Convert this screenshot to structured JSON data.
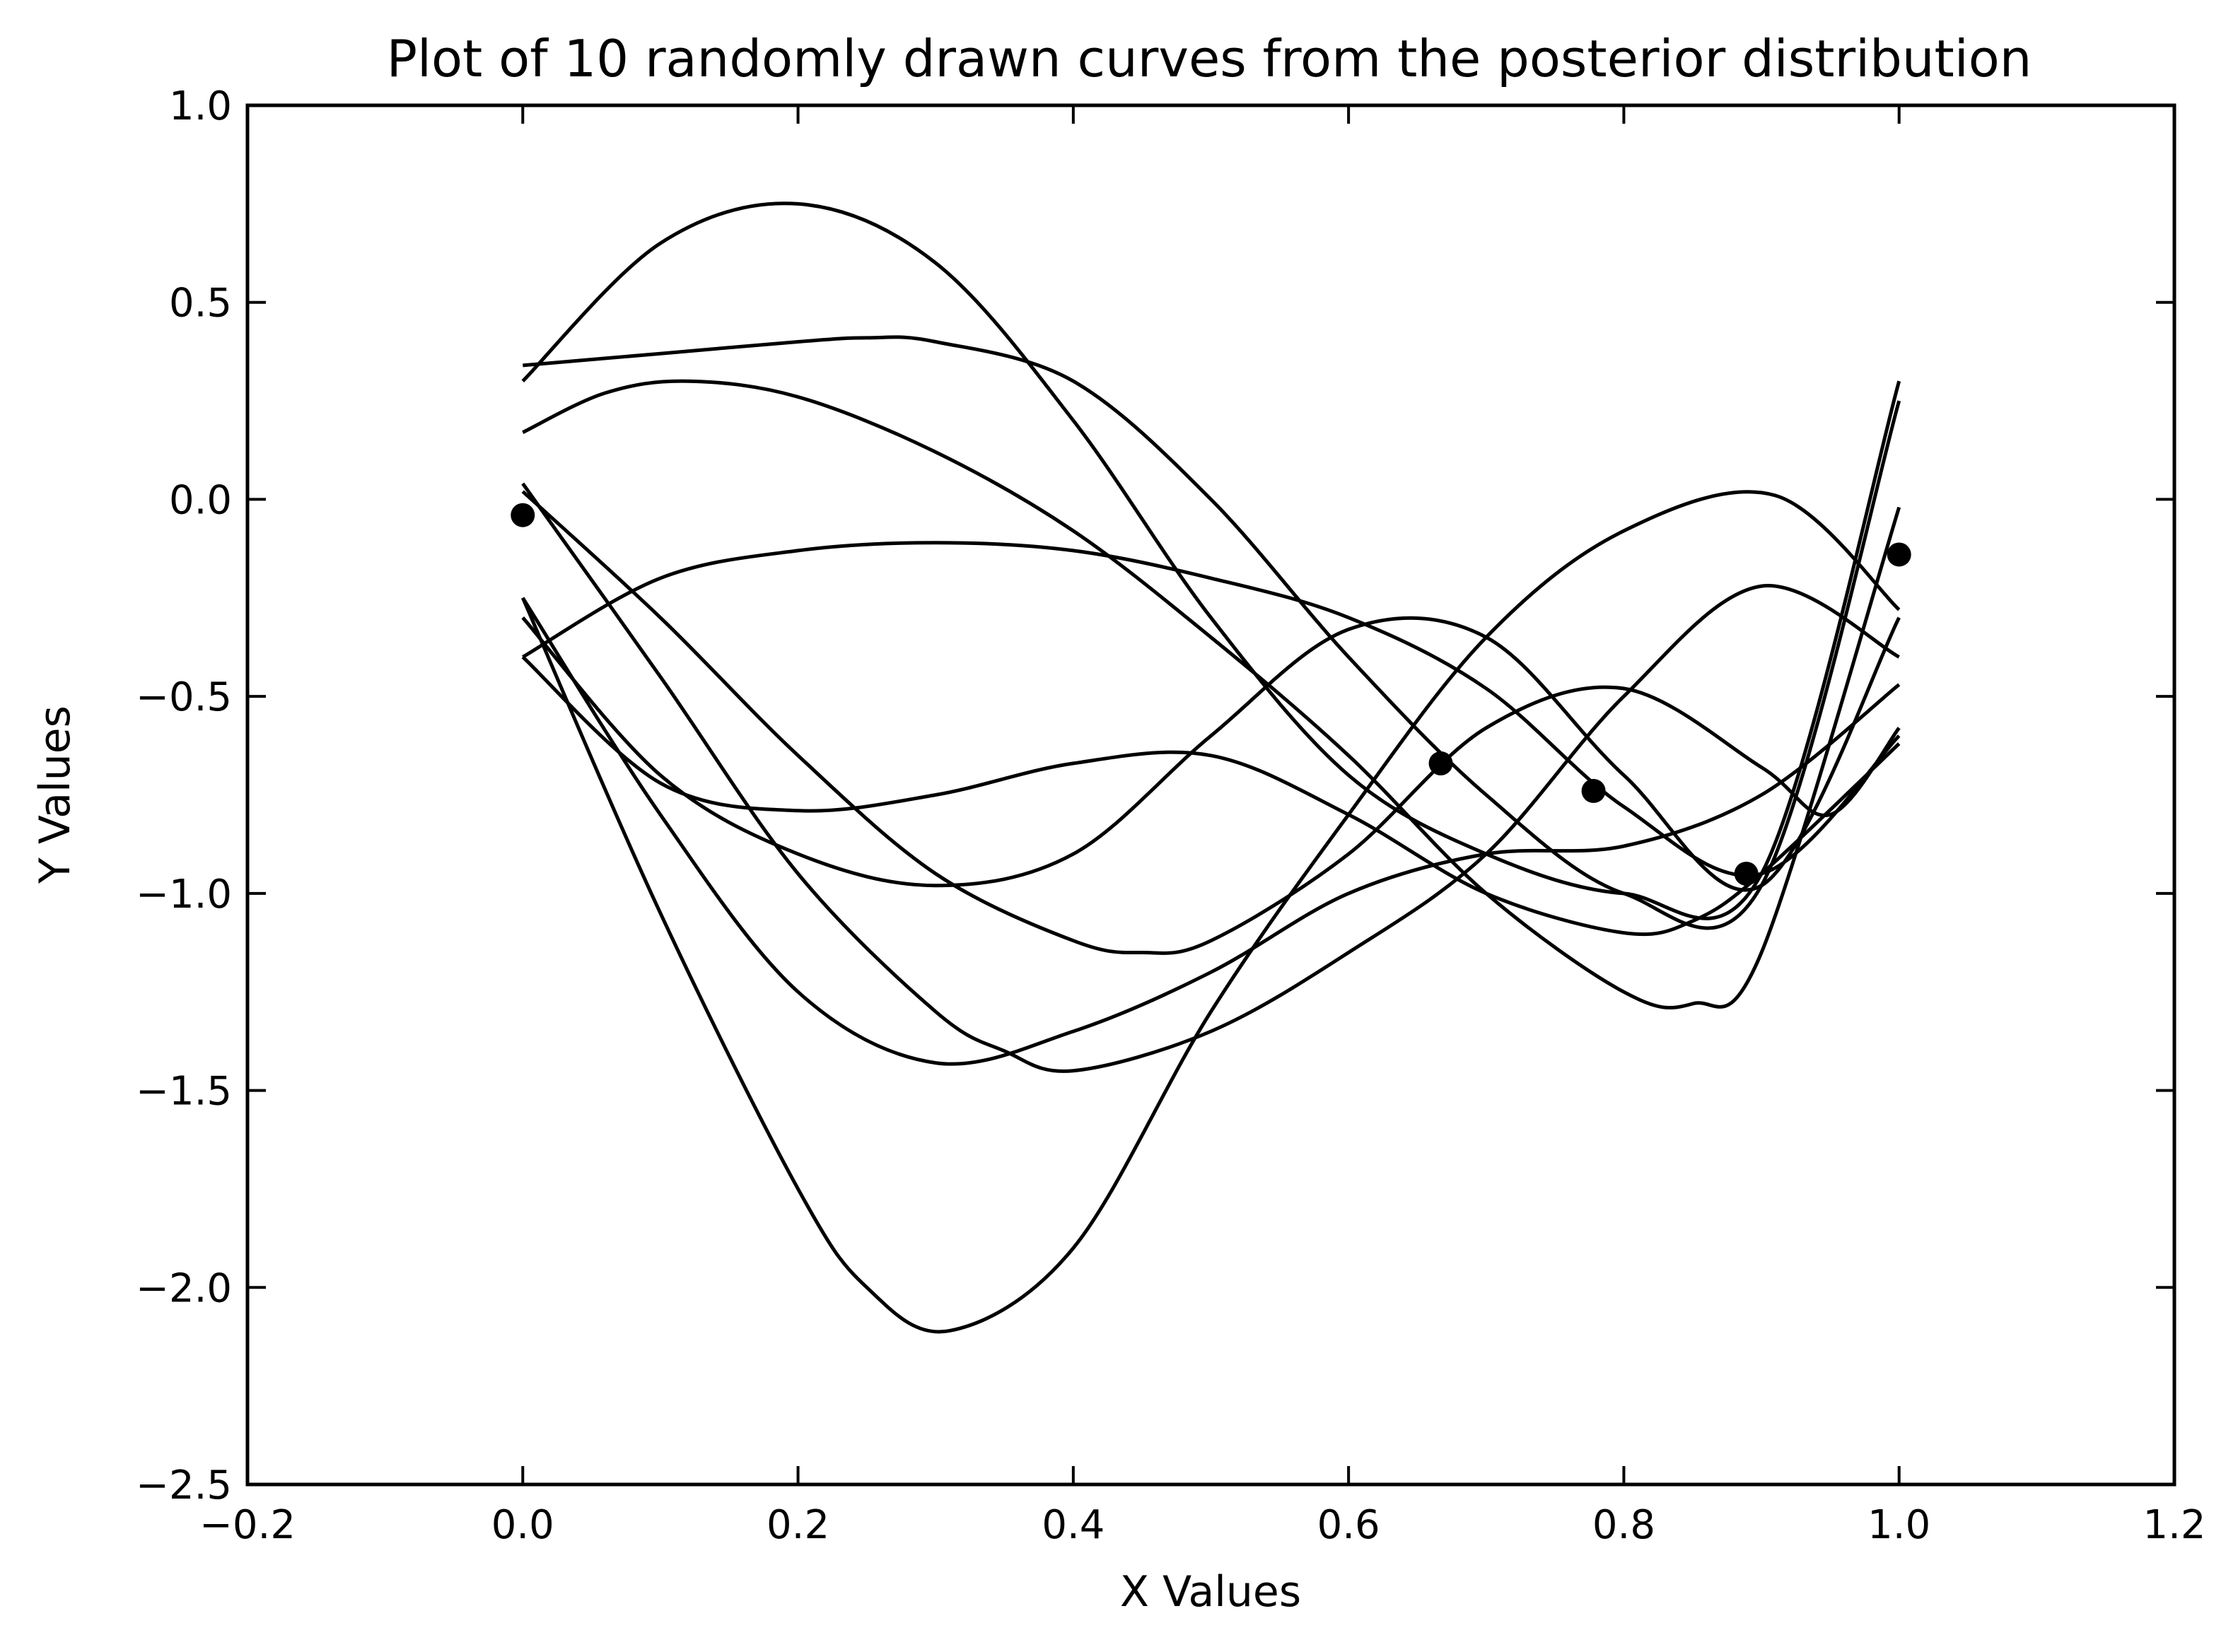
{
  "chart_data": {
    "type": "line",
    "title": "Plot of 10 randomly drawn curves from the posterior distribution",
    "xlabel": "X Values",
    "ylabel": "Y Values",
    "xlim": [
      -0.2,
      1.2
    ],
    "ylim": [
      -2.5,
      1.0
    ],
    "xticks": [
      -0.2,
      0.0,
      0.2,
      0.4,
      0.6,
      0.8,
      1.0,
      1.2
    ],
    "yticks": [
      -2.5,
      -2.0,
      -1.5,
      -1.0,
      -0.5,
      0.0,
      0.5,
      1.0
    ],
    "xtick_labels": [
      "−0.2",
      "0.0",
      "0.2",
      "0.4",
      "0.6",
      "0.8",
      "1.0",
      "1.2"
    ],
    "ytick_labels": [
      "−2.5",
      "−2.0",
      "−1.5",
      "−1.0",
      "−0.5",
      "0.0",
      "0.5",
      "1.0"
    ],
    "grid": false,
    "legend": false,
    "line_color": "#000000",
    "marker_color": "#000000",
    "observed_points": {
      "x": [
        0.0,
        0.667,
        0.778,
        0.889,
        1.0
      ],
      "y": [
        -0.04,
        -0.67,
        -0.74,
        -0.95,
        -0.14
      ]
    },
    "series": [
      {
        "x": [
          0.0,
          0.1,
          0.2,
          0.3,
          0.4,
          0.5,
          0.6,
          0.7,
          0.8,
          0.9,
          1.0
        ],
        "y": [
          0.3,
          0.65,
          0.75,
          0.6,
          0.2,
          -0.3,
          -0.7,
          -0.9,
          -1.0,
          -0.95,
          0.3
        ]
      },
      {
        "x": [
          0.0,
          0.1,
          0.2,
          0.25,
          0.3,
          0.4,
          0.5,
          0.6,
          0.7,
          0.8,
          0.9,
          1.0
        ],
        "y": [
          0.34,
          0.37,
          0.4,
          0.41,
          0.4,
          0.3,
          0.0,
          -0.4,
          -0.75,
          -1.0,
          -0.98,
          0.25
        ]
      },
      {
        "x": [
          0.0,
          0.06,
          0.12,
          0.2,
          0.3,
          0.4,
          0.5,
          0.6,
          0.7,
          0.8,
          0.85,
          0.9,
          1.0
        ],
        "y": [
          0.17,
          0.27,
          0.3,
          0.26,
          0.12,
          -0.08,
          -0.35,
          -0.65,
          -1.0,
          -1.25,
          -1.28,
          -1.15,
          -0.02
        ]
      },
      {
        "x": [
          0.0,
          0.1,
          0.2,
          0.3,
          0.4,
          0.5,
          0.6,
          0.7,
          0.8,
          0.9,
          1.0
        ],
        "y": [
          -0.4,
          -0.2,
          -0.13,
          -0.11,
          -0.13,
          -0.2,
          -0.3,
          -0.48,
          -0.78,
          -0.95,
          -0.6
        ]
      },
      {
        "x": [
          0.0,
          0.1,
          0.2,
          0.3,
          0.4,
          0.5,
          0.6,
          0.7,
          0.8,
          0.9,
          1.0
        ],
        "y": [
          -0.3,
          -0.7,
          -0.9,
          -0.98,
          -0.9,
          -0.6,
          -0.33,
          -0.35,
          -0.7,
          -0.98,
          -0.3
        ]
      },
      {
        "x": [
          0.0,
          0.1,
          0.2,
          0.3,
          0.4,
          0.5,
          0.6,
          0.7,
          0.8,
          0.85,
          0.9,
          1.0
        ],
        "y": [
          -0.4,
          -0.72,
          -0.79,
          -0.75,
          -0.67,
          -0.65,
          -0.8,
          -1.0,
          -1.1,
          -1.07,
          -0.95,
          -0.62
        ]
      },
      {
        "x": [
          0.0,
          0.1,
          0.2,
          0.3,
          0.4,
          0.45,
          0.5,
          0.6,
          0.7,
          0.8,
          0.9,
          0.95,
          1.0
        ],
        "y": [
          0.02,
          -0.3,
          -0.65,
          -0.95,
          -1.12,
          -1.15,
          -1.12,
          -0.9,
          -0.58,
          -0.48,
          -0.68,
          -0.8,
          -0.58
        ]
      },
      {
        "x": [
          0.0,
          0.1,
          0.2,
          0.3,
          0.35,
          0.4,
          0.5,
          0.6,
          0.7,
          0.8,
          0.9,
          1.0
        ],
        "y": [
          0.04,
          -0.45,
          -0.95,
          -1.3,
          -1.4,
          -1.45,
          -1.35,
          -1.15,
          -0.9,
          -0.5,
          -0.22,
          -0.4
        ]
      },
      {
        "x": [
          0.0,
          0.1,
          0.2,
          0.3,
          0.4,
          0.5,
          0.6,
          0.7,
          0.8,
          0.9,
          1.0
        ],
        "y": [
          -0.25,
          -0.8,
          -1.25,
          -1.43,
          -1.35,
          -1.2,
          -1.0,
          -0.9,
          -0.88,
          -0.75,
          -0.47
        ]
      },
      {
        "x": [
          0.0,
          0.1,
          0.2,
          0.25,
          0.31,
          0.4,
          0.5,
          0.6,
          0.7,
          0.8,
          0.91,
          1.0
        ],
        "y": [
          -0.25,
          -1.05,
          -1.75,
          -2.0,
          -2.11,
          -1.9,
          -1.3,
          -0.8,
          -0.35,
          -0.08,
          0.01,
          -0.28
        ]
      }
    ]
  }
}
